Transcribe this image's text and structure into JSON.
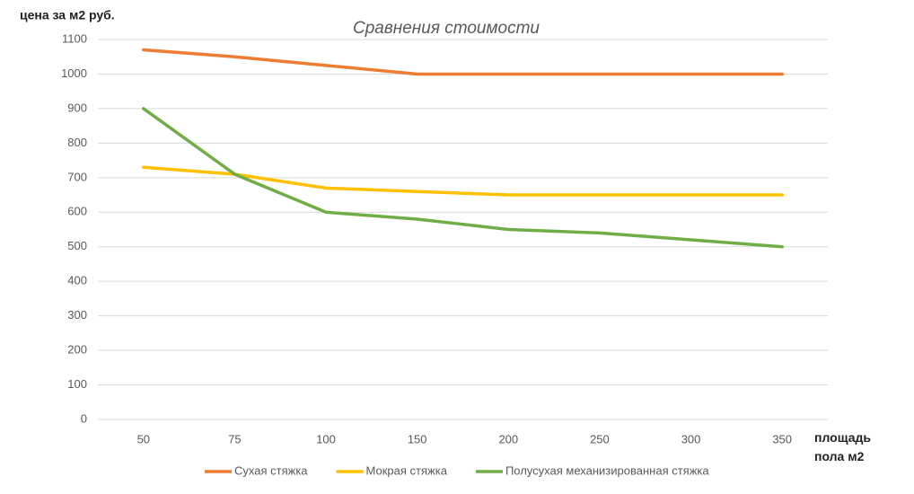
{
  "chart_data": {
    "type": "line",
    "title": "Сравнения стоимости",
    "ylabel": "цена за м2 руб.",
    "xlabel": "площадь пола м2",
    "categories": [
      "50",
      "75",
      "100",
      "150",
      "200",
      "250",
      "300",
      "350"
    ],
    "series": [
      {
        "name": "Сухая стяжка",
        "color": "#ed7d31",
        "values": [
          1070,
          1050,
          1025,
          1000,
          1000,
          1000,
          1000,
          1000
        ]
      },
      {
        "name": "Мокрая стяжка",
        "color": "#ffc000",
        "values": [
          730,
          710,
          670,
          660,
          650,
          650,
          650,
          650
        ]
      },
      {
        "name": "Полусухая механизированная стяжка",
        "color": "#70ad47",
        "values": [
          900,
          710,
          600,
          580,
          550,
          540,
          520,
          500
        ]
      }
    ],
    "ylim": [
      0,
      1100
    ],
    "yticks": [
      0,
      100,
      200,
      300,
      400,
      500,
      600,
      700,
      800,
      900,
      1000,
      1100
    ],
    "grid": true,
    "legend": "bottom"
  }
}
